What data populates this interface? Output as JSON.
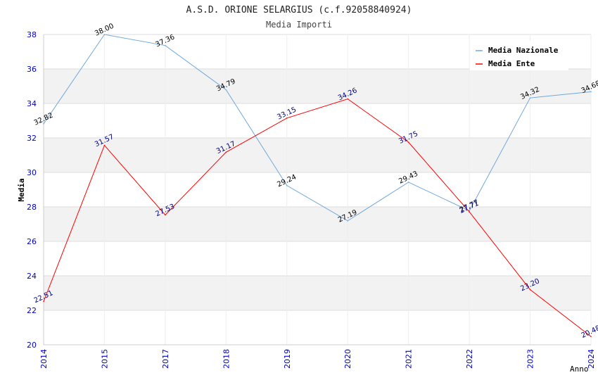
{
  "chart_data": {
    "type": "line",
    "title": "A.S.D. ORIONE SELARGIUS (c.f.92058840924)",
    "subtitle": "Media Importi",
    "xlabel": "Anno",
    "ylabel": "Media",
    "categories": [
      "2014",
      "2015",
      "2017",
      "2018",
      "2019",
      "2020",
      "2021",
      "2022",
      "2023",
      "2024"
    ],
    "ylim": [
      20,
      38
    ],
    "yticks": [
      20,
      22,
      24,
      26,
      28,
      30,
      32,
      34,
      36,
      38
    ],
    "grid": true,
    "legend_position": "top-right",
    "series": [
      {
        "name": "Media Nazionale",
        "color": "#6fa8dc",
        "label_color": "#000000",
        "values": [
          32.82,
          38.0,
          37.36,
          34.79,
          29.24,
          27.19,
          29.43,
          27.77,
          34.32,
          34.68
        ],
        "labels": [
          "32.82",
          "38.00",
          "37.36",
          "34.79",
          "29.24",
          "27.19",
          "29.43",
          "27.77",
          "34.32",
          "34.68"
        ]
      },
      {
        "name": "Media Ente",
        "color": "#ff0000",
        "label_color": "#000080",
        "values": [
          22.51,
          31.57,
          27.53,
          31.17,
          33.15,
          34.26,
          31.75,
          27.71,
          23.2,
          20.48
        ],
        "labels": [
          "22.51",
          "31.57",
          "27.53",
          "31.17",
          "33.15",
          "34.26",
          "31.75",
          "27.71",
          "23.20",
          "20.48"
        ]
      }
    ]
  }
}
